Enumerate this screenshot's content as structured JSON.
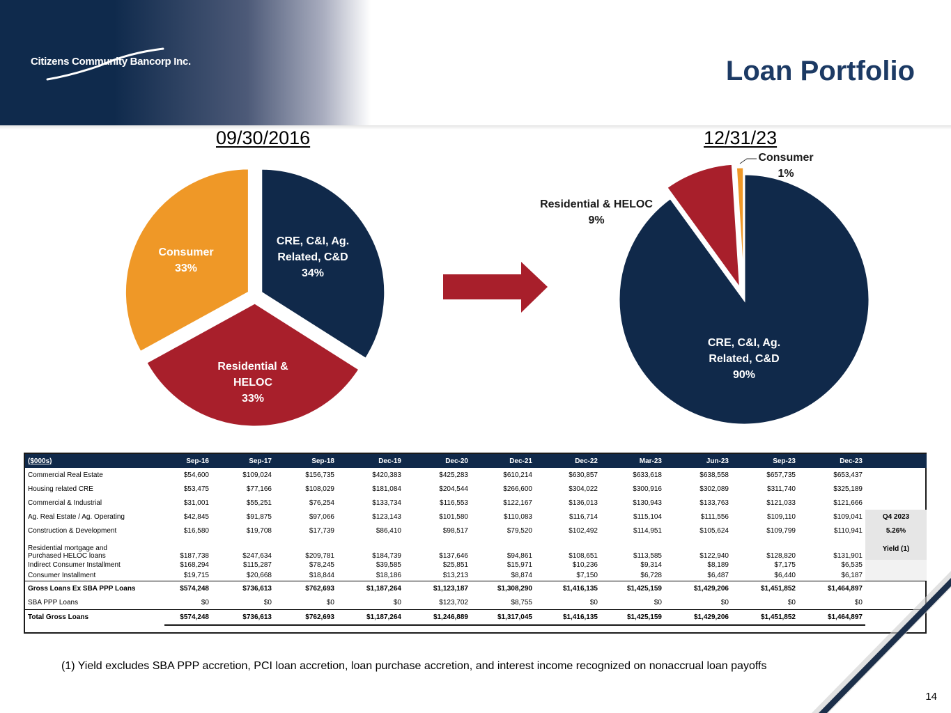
{
  "header": {
    "company": "Citizens Community Bancorp Inc.",
    "title": "Loan Portfolio"
  },
  "colors": {
    "navy": "#10294a",
    "red": "#a81f2b",
    "orange": "#ef9827",
    "title": "#1c3a64"
  },
  "chart_data": [
    {
      "type": "pie",
      "title": "09/30/2016",
      "slices": [
        {
          "label_lines": [
            "CRE, C&I, Ag.",
            "Related, C&D"
          ],
          "pct_label": "34%",
          "value": 34,
          "color": "#10294a"
        },
        {
          "label_lines": [
            "Residential &",
            "HELOC"
          ],
          "pct_label": "33%",
          "value": 33,
          "color": "#a81f2b"
        },
        {
          "label_lines": [
            "Consumer"
          ],
          "pct_label": "33%",
          "value": 33,
          "color": "#ef9827"
        }
      ]
    },
    {
      "type": "pie",
      "title": "12/31/23",
      "slices": [
        {
          "label_lines": [
            "CRE, C&I, Ag.",
            "Related, C&D"
          ],
          "pct_label": "90%",
          "value": 90,
          "color": "#10294a"
        },
        {
          "label_lines": [
            "Residential & HELOC"
          ],
          "pct_label": "9%",
          "value": 9,
          "color": "#a81f2b"
        },
        {
          "label_lines": [
            "Consumer"
          ],
          "pct_label": "1%",
          "value": 1,
          "color": "#ef9827"
        }
      ]
    }
  ],
  "table": {
    "unit_label": "($000s)",
    "columns": [
      "Sep-16",
      "Sep-17",
      "Sep-18",
      "Dec-19",
      "Dec-20",
      "Dec-21",
      "Dec-22",
      "Mar-23",
      "Jun-23",
      "Sep-23",
      "Dec-23"
    ],
    "rows": [
      {
        "label": "Commercial Real Estate",
        "values": [
          "$54,600",
          "$109,024",
          "$156,735",
          "$420,383",
          "$425,283",
          "$610,214",
          "$630,857",
          "$633,618",
          "$638,558",
          "$657,735",
          "$653,437"
        ]
      },
      {
        "label": "Housing related CRE",
        "values": [
          "$53,475",
          "$77,166",
          "$108,029",
          "$181,084",
          "$204,544",
          "$266,600",
          "$304,022",
          "$300,916",
          "$302,089",
          "$311,740",
          "$325,189"
        ]
      },
      {
        "label": "Commercial & Industrial",
        "values": [
          "$31,001",
          "$55,251",
          "$76,254",
          "$133,734",
          "$116,553",
          "$122,167",
          "$136,013",
          "$130,943",
          "$133,763",
          "$121,033",
          "$121,666"
        ]
      },
      {
        "label": "Ag. Real Estate / Ag. Operating",
        "values": [
          "$42,845",
          "$91,875",
          "$97,066",
          "$123,143",
          "$101,580",
          "$110,083",
          "$116,714",
          "$115,104",
          "$111,556",
          "$109,110",
          "$109,041"
        ]
      },
      {
        "label": "Construction & Development",
        "values": [
          "$16,580",
          "$19,708",
          "$17,739",
          "$86,410",
          "$98,517",
          "$79,520",
          "$102,492",
          "$114,951",
          "$105,624",
          "$109,799",
          "$110,941"
        ]
      },
      {
        "label_lines": [
          "Residential mortgage and",
          "Purchased HELOC loans"
        ],
        "values": [
          "$187,738",
          "$247,634",
          "$209,781",
          "$184,739",
          "$137,646",
          "$94,861",
          "$108,651",
          "$113,585",
          "$122,940",
          "$128,820",
          "$131,901"
        ]
      },
      {
        "label": "Indirect Consumer Installment",
        "values": [
          "$168,294",
          "$115,287",
          "$78,245",
          "$39,585",
          "$25,851",
          "$15,971",
          "$10,236",
          "$9,314",
          "$8,189",
          "$7,175",
          "$6,535"
        ]
      },
      {
        "label": "Consumer Installment",
        "values": [
          "$19,715",
          "$20,668",
          "$18,844",
          "$18,186",
          "$13,213",
          "$8,874",
          "$7,150",
          "$6,728",
          "$6,487",
          "$6,440",
          "$6,187"
        ]
      },
      {
        "label": "Gross Loans Ex SBA PPP Loans",
        "values": [
          "$574,248",
          "$736,613",
          "$762,693",
          "$1,187,264",
          "$1,123,187",
          "$1,308,290",
          "$1,416,135",
          "$1,425,159",
          "$1,429,206",
          "$1,451,852",
          "$1,464,897"
        ]
      },
      {
        "label": "SBA PPP Loans",
        "values": [
          "$0",
          "$0",
          "$0",
          "$0",
          "$123,702",
          "$8,755",
          "$0",
          "$0",
          "$0",
          "$0",
          "$0"
        ]
      },
      {
        "label": "Total Gross Loans",
        "values": [
          "$574,248",
          "$736,613",
          "$762,693",
          "$1,187,264",
          "$1,246,889",
          "$1,317,045",
          "$1,416,135",
          "$1,425,159",
          "$1,429,206",
          "$1,451,852",
          "$1,464,897"
        ]
      }
    ],
    "side": {
      "period": "Q4 2023",
      "yield_value": "5.26%",
      "yield_label": "Yield  (1)"
    }
  },
  "footnote": "(1) Yield excludes SBA PPP accretion, PCI loan accretion, loan purchase accretion, and interest income recognized on nonaccrual loan payoffs",
  "page_number": "14"
}
